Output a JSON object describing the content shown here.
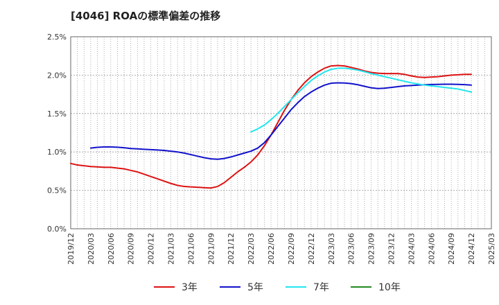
{
  "chart_data": {
    "type": "line",
    "title": "[4046]  ROAの標準偏差の推移",
    "xlabel": "",
    "ylabel": "",
    "ylim": [
      0,
      2.5
    ],
    "yticks": [
      "0.0%",
      "0.5%",
      "1.0%",
      "1.5%",
      "2.0%",
      "2.5%"
    ],
    "xlim": [
      "2019/12",
      "2025/03"
    ],
    "xticks": [
      "2019/12",
      "2020/03",
      "2020/06",
      "2020/09",
      "2020/12",
      "2021/03",
      "2021/06",
      "2021/09",
      "2021/12",
      "2022/03",
      "2022/06",
      "2022/09",
      "2022/12",
      "2023/03",
      "2023/06",
      "2023/09",
      "2023/12",
      "2024/03",
      "2024/06",
      "2024/09",
      "2024/12",
      "2025/03"
    ],
    "grid": true,
    "legend_position": "bottom",
    "series": [
      {
        "name": "3年",
        "color": "#dd1111",
        "points": [
          [
            "2019/12",
            0.85
          ],
          [
            "2020/01",
            0.83
          ],
          [
            "2020/02",
            0.82
          ],
          [
            "2020/03",
            0.81
          ],
          [
            "2020/04",
            0.805
          ],
          [
            "2020/05",
            0.8
          ],
          [
            "2020/06",
            0.8
          ],
          [
            "2020/07",
            0.79
          ],
          [
            "2020/08",
            0.78
          ],
          [
            "2020/09",
            0.76
          ],
          [
            "2020/10",
            0.74
          ],
          [
            "2020/11",
            0.71
          ],
          [
            "2020/12",
            0.68
          ],
          [
            "2021/01",
            0.65
          ],
          [
            "2021/02",
            0.62
          ],
          [
            "2021/03",
            0.59
          ],
          [
            "2021/04",
            0.565
          ],
          [
            "2021/05",
            0.55
          ],
          [
            "2021/06",
            0.545
          ],
          [
            "2021/07",
            0.54
          ],
          [
            "2021/08",
            0.535
          ],
          [
            "2021/09",
            0.53
          ],
          [
            "2021/10",
            0.55
          ],
          [
            "2021/11",
            0.6
          ],
          [
            "2021/12",
            0.67
          ],
          [
            "2022/01",
            0.74
          ],
          [
            "2022/02",
            0.8
          ],
          [
            "2022/03",
            0.87
          ],
          [
            "2022/04",
            0.96
          ],
          [
            "2022/05",
            1.08
          ],
          [
            "2022/06",
            1.22
          ],
          [
            "2022/07",
            1.38
          ],
          [
            "2022/08",
            1.54
          ],
          [
            "2022/09",
            1.68
          ],
          [
            "2022/10",
            1.8
          ],
          [
            "2022/11",
            1.9
          ],
          [
            "2022/12",
            1.98
          ],
          [
            "2023/01",
            2.04
          ],
          [
            "2023/02",
            2.09
          ],
          [
            "2023/03",
            2.12
          ],
          [
            "2023/04",
            2.125
          ],
          [
            "2023/05",
            2.12
          ],
          [
            "2023/06",
            2.1
          ],
          [
            "2023/07",
            2.08
          ],
          [
            "2023/08",
            2.055
          ],
          [
            "2023/09",
            2.035
          ],
          [
            "2023/10",
            2.025
          ],
          [
            "2023/11",
            2.02
          ],
          [
            "2023/12",
            2.02
          ],
          [
            "2024/01",
            2.02
          ],
          [
            "2024/02",
            2.01
          ],
          [
            "2024/03",
            1.99
          ],
          [
            "2024/04",
            1.975
          ],
          [
            "2024/05",
            1.97
          ],
          [
            "2024/06",
            1.975
          ],
          [
            "2024/07",
            1.98
          ],
          [
            "2024/08",
            1.99
          ],
          [
            "2024/09",
            2.0
          ],
          [
            "2024/10",
            2.005
          ],
          [
            "2024/11",
            2.01
          ],
          [
            "2024/12",
            2.01
          ]
        ]
      },
      {
        "name": "5年",
        "color": "#1111cc",
        "points": [
          [
            "2020/03",
            1.05
          ],
          [
            "2020/04",
            1.06
          ],
          [
            "2020/05",
            1.065
          ],
          [
            "2020/06",
            1.065
          ],
          [
            "2020/07",
            1.062
          ],
          [
            "2020/08",
            1.055
          ],
          [
            "2020/09",
            1.045
          ],
          [
            "2020/10",
            1.04
          ],
          [
            "2020/11",
            1.035
          ],
          [
            "2020/12",
            1.03
          ],
          [
            "2021/01",
            1.025
          ],
          [
            "2021/02",
            1.02
          ],
          [
            "2021/03",
            1.01
          ],
          [
            "2021/04",
            1.0
          ],
          [
            "2021/05",
            0.985
          ],
          [
            "2021/06",
            0.965
          ],
          [
            "2021/07",
            0.945
          ],
          [
            "2021/08",
            0.925
          ],
          [
            "2021/09",
            0.91
          ],
          [
            "2021/10",
            0.905
          ],
          [
            "2021/11",
            0.915
          ],
          [
            "2021/12",
            0.935
          ],
          [
            "2022/01",
            0.96
          ],
          [
            "2022/02",
            0.985
          ],
          [
            "2022/03",
            1.01
          ],
          [
            "2022/04",
            1.05
          ],
          [
            "2022/05",
            1.12
          ],
          [
            "2022/06",
            1.22
          ],
          [
            "2022/07",
            1.33
          ],
          [
            "2022/08",
            1.44
          ],
          [
            "2022/09",
            1.55
          ],
          [
            "2022/10",
            1.64
          ],
          [
            "2022/11",
            1.72
          ],
          [
            "2022/12",
            1.78
          ],
          [
            "2023/01",
            1.83
          ],
          [
            "2023/02",
            1.87
          ],
          [
            "2023/03",
            1.895
          ],
          [
            "2023/04",
            1.9
          ],
          [
            "2023/05",
            1.898
          ],
          [
            "2023/06",
            1.89
          ],
          [
            "2023/07",
            1.875
          ],
          [
            "2023/08",
            1.855
          ],
          [
            "2023/09",
            1.835
          ],
          [
            "2023/10",
            1.825
          ],
          [
            "2023/11",
            1.83
          ],
          [
            "2023/12",
            1.84
          ],
          [
            "2024/01",
            1.85
          ],
          [
            "2024/02",
            1.86
          ],
          [
            "2024/03",
            1.865
          ],
          [
            "2024/04",
            1.87
          ],
          [
            "2024/05",
            1.875
          ],
          [
            "2024/06",
            1.878
          ],
          [
            "2024/07",
            1.88
          ],
          [
            "2024/08",
            1.882
          ],
          [
            "2024/09",
            1.882
          ],
          [
            "2024/10",
            1.88
          ],
          [
            "2024/11",
            1.876
          ],
          [
            "2024/12",
            1.87
          ]
        ]
      },
      {
        "name": "7年",
        "color": "#22e5ee",
        "points": [
          [
            "2022/03",
            1.26
          ],
          [
            "2022/04",
            1.3
          ],
          [
            "2022/05",
            1.35
          ],
          [
            "2022/06",
            1.42
          ],
          [
            "2022/07",
            1.5
          ],
          [
            "2022/08",
            1.59
          ],
          [
            "2022/09",
            1.68
          ],
          [
            "2022/10",
            1.77
          ],
          [
            "2022/11",
            1.85
          ],
          [
            "2022/12",
            1.93
          ],
          [
            "2023/01",
            1.99
          ],
          [
            "2023/02",
            2.04
          ],
          [
            "2023/03",
            2.075
          ],
          [
            "2023/04",
            2.09
          ],
          [
            "2023/05",
            2.09
          ],
          [
            "2023/06",
            2.08
          ],
          [
            "2023/07",
            2.065
          ],
          [
            "2023/08",
            2.045
          ],
          [
            "2023/09",
            2.02
          ],
          [
            "2023/10",
            2.0
          ],
          [
            "2023/11",
            1.98
          ],
          [
            "2023/12",
            1.96
          ],
          [
            "2024/01",
            1.94
          ],
          [
            "2024/02",
            1.92
          ],
          [
            "2024/03",
            1.9
          ],
          [
            "2024/04",
            1.885
          ],
          [
            "2024/05",
            1.87
          ],
          [
            "2024/06",
            1.86
          ],
          [
            "2024/07",
            1.85
          ],
          [
            "2024/08",
            1.84
          ],
          [
            "2024/09",
            1.83
          ],
          [
            "2024/10",
            1.82
          ],
          [
            "2024/11",
            1.8
          ],
          [
            "2024/12",
            1.78
          ]
        ]
      },
      {
        "name": "10年",
        "color": "#228b22",
        "points": []
      }
    ]
  }
}
